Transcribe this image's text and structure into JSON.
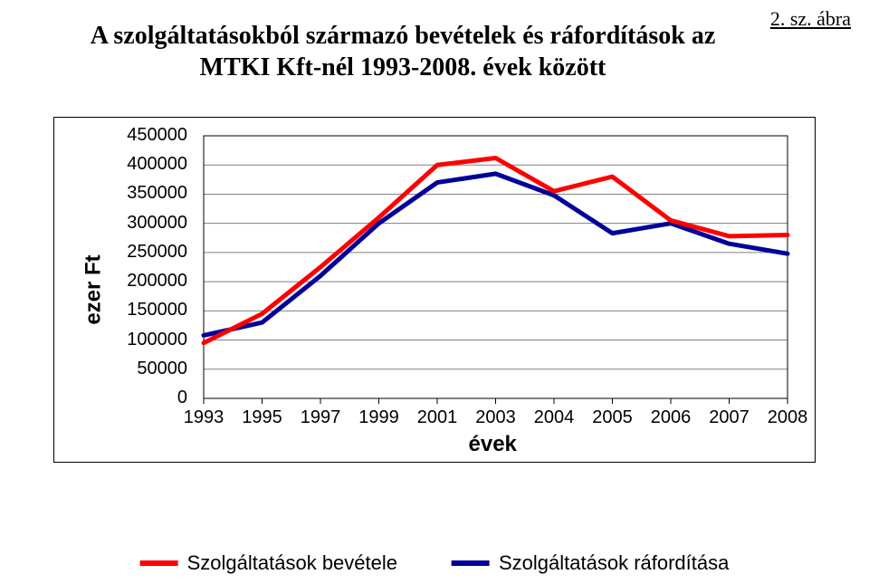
{
  "figure_label": "2. sz. ábra",
  "title_line1": "A szolgáltatásokból származó bevételek és ráfordítások az",
  "title_line2": "MTKI Kft-nél 1993-2008. évek között",
  "chart": {
    "type": "line",
    "background_color": "#ffffff",
    "grid_color": "#808080",
    "border_color": "#000000",
    "plot_area_fill": "#ffffff",
    "ylabel": "ezer Ft",
    "xlabel": "évek",
    "label_fontsize": 24,
    "tick_fontsize": 20,
    "ylim": [
      0,
      450000
    ],
    "ytick_step": 50000,
    "yticks": [
      0,
      50000,
      100000,
      150000,
      200000,
      250000,
      300000,
      350000,
      400000,
      450000
    ],
    "x_categories": [
      "1993",
      "1995",
      "1997",
      "1999",
      "2001",
      "2003",
      "2004",
      "2005",
      "2006",
      "2007",
      "2008"
    ],
    "series": [
      {
        "name": "Szolgáltatások bevétele",
        "color": "#ff0000",
        "line_width": 5,
        "values": [
          95000,
          145000,
          225000,
          310000,
          400000,
          412000,
          355000,
          380000,
          305000,
          278000,
          280000
        ]
      },
      {
        "name": "Szolgáltatások ráfordítása",
        "color": "#000099",
        "line_width": 5,
        "values": [
          108000,
          130000,
          210000,
          300000,
          370000,
          385000,
          348000,
          283000,
          300000,
          265000,
          248000
        ]
      }
    ],
    "legend": {
      "position": "bottom",
      "swatch_width": 42,
      "swatch_height": 6
    }
  }
}
